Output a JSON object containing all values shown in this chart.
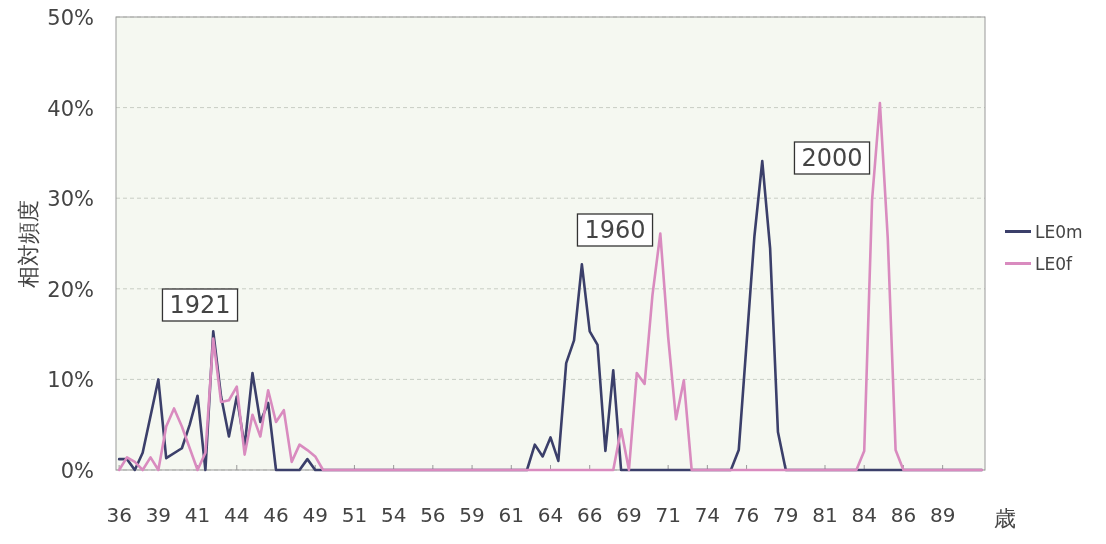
{
  "chart_data": {
    "type": "line",
    "xlabel": "歳",
    "ylabel": "相対頻度",
    "xlim": [
      35.8,
      91.2
    ],
    "xticks": [
      {
        "value": 36,
        "label": "36"
      },
      {
        "value": 38.5,
        "label": "39"
      },
      {
        "value": 41,
        "label": "41"
      },
      {
        "value": 43.5,
        "label": "44"
      },
      {
        "value": 46,
        "label": "46"
      },
      {
        "value": 48.5,
        "label": "49"
      },
      {
        "value": 51,
        "label": "51"
      },
      {
        "value": 53.5,
        "label": "54"
      },
      {
        "value": 56,
        "label": "56"
      },
      {
        "value": 58.5,
        "label": "59"
      },
      {
        "value": 61,
        "label": "61"
      },
      {
        "value": 63.5,
        "label": "64"
      },
      {
        "value": 66,
        "label": "66"
      },
      {
        "value": 68.5,
        "label": "69"
      },
      {
        "value": 71,
        "label": "71"
      },
      {
        "value": 73.5,
        "label": "74"
      },
      {
        "value": 76,
        "label": "76"
      },
      {
        "value": 78.5,
        "label": "79"
      },
      {
        "value": 81,
        "label": "81"
      },
      {
        "value": 83.5,
        "label": "84"
      },
      {
        "value": 86,
        "label": "86"
      },
      {
        "value": 88.5,
        "label": "89"
      }
    ],
    "ylim": [
      0,
      50
    ],
    "yticks": [
      {
        "value": 0,
        "label": "0%"
      },
      {
        "value": 10,
        "label": "10%"
      },
      {
        "value": 20,
        "label": "20%"
      },
      {
        "value": 30,
        "label": "30%"
      },
      {
        "value": 40,
        "label": "40%"
      },
      {
        "value": 50,
        "label": "50%"
      }
    ],
    "grid": "y",
    "legend": "right",
    "marker": "none",
    "line_style": "solid",
    "annotations": [
      "1921",
      "1960",
      "2000"
    ],
    "series": [
      {
        "name": "LE0m",
        "color": "#3b3f6a",
        "x": [
          36,
          36.5,
          37,
          37.5,
          38.5,
          39,
          40,
          40.5,
          41,
          41.5,
          42,
          42.5,
          43,
          43.5,
          44,
          44.5,
          45,
          45.5,
          46,
          47.5,
          48,
          48.5,
          62,
          62.5,
          63,
          63.5,
          64,
          64.5,
          65,
          65.5,
          66,
          66.5,
          67,
          67.5,
          68,
          75,
          75.5,
          76.5,
          77,
          77.5,
          78,
          78.5,
          91
        ],
        "values": [
          1.2,
          1.2,
          0,
          1.9,
          10.0,
          1.3,
          2.4,
          5.0,
          8.2,
          0,
          15.3,
          8.1,
          3.7,
          8.1,
          2.6,
          10.7,
          5.3,
          7.4,
          0,
          0,
          1.2,
          0,
          0,
          2.8,
          1.5,
          3.6,
          1.0,
          11.8,
          14.3,
          22.7,
          15.3,
          13.8,
          2.1,
          11.0,
          0,
          0,
          2.2,
          25.8,
          34.1,
          24.5,
          4.2,
          0,
          0
        ]
      },
      {
        "name": "LE0f",
        "color": "#d98bbf",
        "x": [
          36,
          36.5,
          37,
          37.5,
          38,
          38.5,
          39,
          39.5,
          40,
          40.5,
          41,
          41.5,
          42,
          42.5,
          43,
          43.5,
          44,
          44.5,
          45,
          45.5,
          46,
          46.5,
          47,
          47.5,
          48,
          48.5,
          49,
          67.5,
          68,
          68.5,
          69,
          69.5,
          70,
          70.5,
          71,
          71.5,
          72,
          72.5,
          83,
          83.5,
          84,
          84.5,
          85,
          85.5,
          86,
          91
        ],
        "values": [
          0,
          1.4,
          0.9,
          0,
          1.4,
          0,
          4.8,
          6.8,
          4.8,
          2.4,
          0,
          1.9,
          14.5,
          7.5,
          7.7,
          9.2,
          1.7,
          6.1,
          3.7,
          8.8,
          5.3,
          6.6,
          0.9,
          2.8,
          2.2,
          1.5,
          0,
          0,
          4.5,
          0,
          10.7,
          9.5,
          19.3,
          26.1,
          14.7,
          5.6,
          9.9,
          0,
          0,
          2.1,
          29.8,
          40.5,
          25.6,
          2.2,
          0,
          0
        ]
      }
    ]
  }
}
